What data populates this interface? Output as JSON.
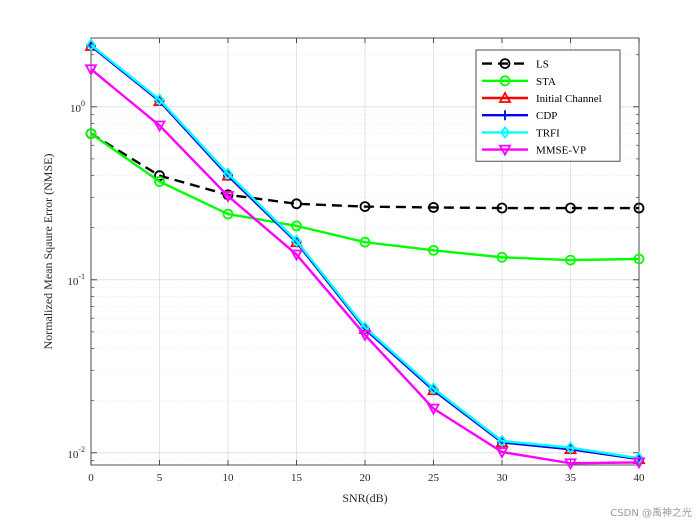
{
  "chart_data": {
    "type": "line",
    "title": "",
    "xlabel": "SNR(dB)",
    "ylabel": "Normalized Mean Sqaure Error (NMSE)",
    "x": [
      0,
      5,
      10,
      15,
      20,
      25,
      30,
      35,
      40
    ],
    "xlim": [
      0,
      40
    ],
    "xticks": [
      "0",
      "5",
      "10",
      "15",
      "20",
      "25",
      "30",
      "35",
      "40"
    ],
    "ylim": [
      0.0085,
      2.5
    ],
    "yscale": "log",
    "yticks": [
      {
        "value": 0.01,
        "base": "10",
        "exp": "-2"
      },
      {
        "value": 0.1,
        "base": "10",
        "exp": "-1"
      },
      {
        "value": 1,
        "base": "10",
        "exp": "0"
      }
    ],
    "grid": true,
    "legend_position": "top-right",
    "series": [
      {
        "name": "LS",
        "color": "#000000",
        "dashed": true,
        "marker": "circle",
        "values": [
          0.7,
          0.4,
          0.31,
          0.275,
          0.265,
          0.262,
          0.26,
          0.26,
          0.26
        ]
      },
      {
        "name": "STA",
        "color": "#00ff00",
        "dashed": false,
        "marker": "circle",
        "values": [
          0.7,
          0.37,
          0.24,
          0.205,
          0.165,
          0.148,
          0.135,
          0.13,
          0.132
        ]
      },
      {
        "name": "Initial Channel",
        "color": "#ff0000",
        "dashed": false,
        "marker": "triangle-up",
        "values": [
          2.25,
          1.08,
          0.4,
          0.165,
          0.052,
          0.023,
          0.0115,
          0.0105,
          0.0092
        ]
      },
      {
        "name": "CDP",
        "color": "#0000ff",
        "dashed": false,
        "marker": "plus",
        "values": [
          2.25,
          1.08,
          0.4,
          0.165,
          0.052,
          0.023,
          0.0115,
          0.0105,
          0.0092
        ]
      },
      {
        "name": "TRFI",
        "color": "#00ffff",
        "dashed": false,
        "marker": "diamond",
        "values": [
          2.28,
          1.1,
          0.41,
          0.168,
          0.053,
          0.0235,
          0.0117,
          0.0107,
          0.0093
        ]
      },
      {
        "name": "MMSE-VP",
        "color": "#ff00ff",
        "dashed": false,
        "marker": "triangle-down",
        "values": [
          1.65,
          0.78,
          0.305,
          0.14,
          0.048,
          0.018,
          0.0101,
          0.0087,
          0.0088
        ]
      }
    ]
  },
  "watermark": "CSDN @禹神之光"
}
